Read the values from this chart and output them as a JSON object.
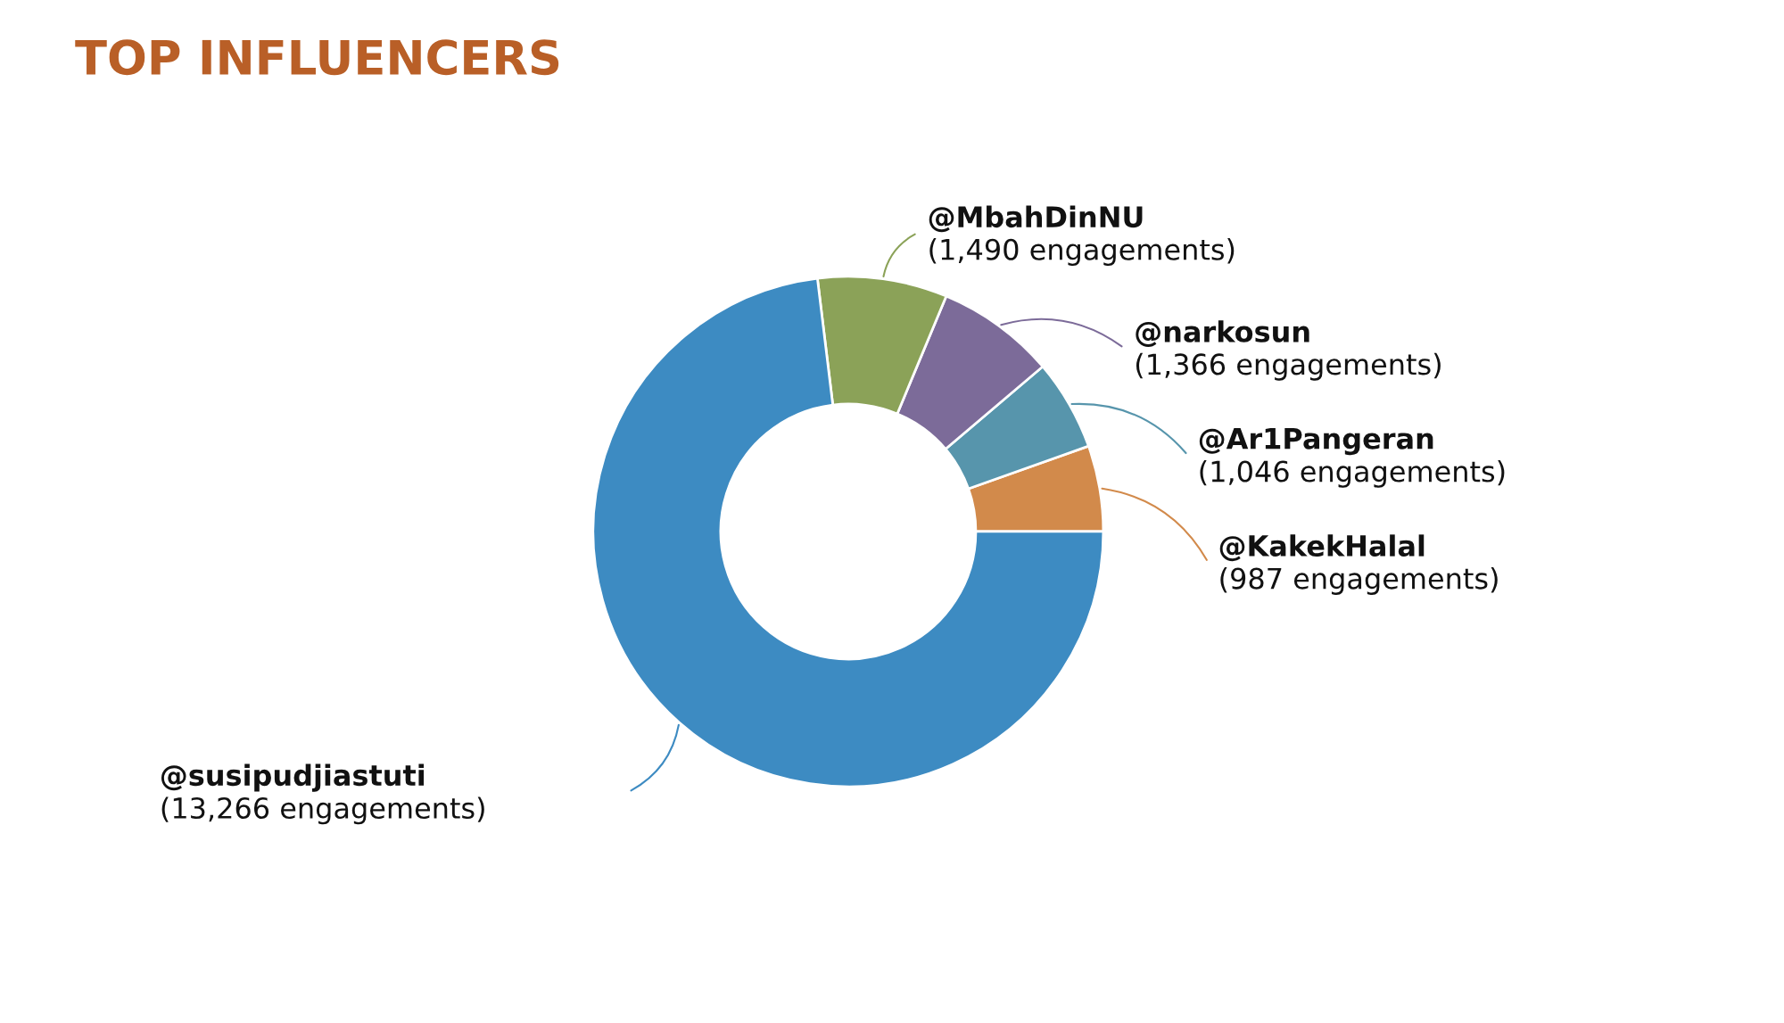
{
  "chart_data": {
    "type": "donut",
    "title": "TOP INFLUENCERS",
    "categories": [
      "@KakekHalal",
      "@Ar1Pangeran",
      "@narkosun",
      "@MbahDinNU",
      "@susipudjiastuti"
    ],
    "values": [
      987,
      1046,
      1366,
      1490,
      13266
    ],
    "value_labels": [
      "(987 engagements)",
      "(1,046 engagements)",
      "(1,366 engagements)",
      "(1,490 engagements)",
      "(13,266 engagements)"
    ],
    "colors": [
      "#d28a4b",
      "#5795ac",
      "#7c6b99",
      "#8ba258",
      "#3d8bc2"
    ],
    "legend": false
  }
}
